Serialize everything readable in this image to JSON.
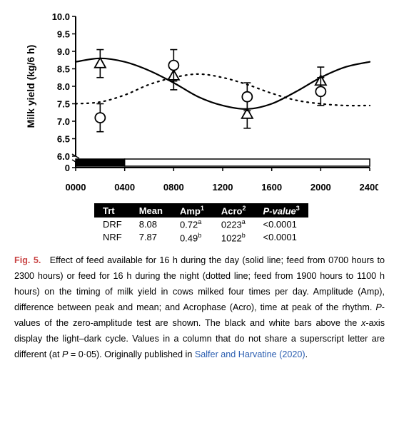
{
  "chart": {
    "type": "line+scatter",
    "ylabel": "Milk yield (kg/6 h)",
    "ylabel_fontsize": 14,
    "xlim": [
      0,
      2400
    ],
    "ylim_main": [
      6.0,
      10.0
    ],
    "ytick_step": 0.5,
    "xticks": [
      0,
      400,
      800,
      1200,
      1600,
      2000,
      2400
    ],
    "xtick_labels": [
      "0000",
      "0400",
      "0800",
      "1200",
      "1600",
      "2000",
      "2400"
    ],
    "ytick_labels": [
      "6.0",
      "6.5",
      "7.0",
      "7.5",
      "8.0",
      "8.5",
      "9.0",
      "9.5",
      "10.0"
    ],
    "tick_fontsize": 13,
    "tick_fontweight": "bold",
    "axis_color": "#000000",
    "background_color": "#ffffff",
    "axis_linewidth": 2,
    "break_y": 0.3,
    "light_dark_bar": {
      "dark_range": [
        0,
        400
      ],
      "light_range": [
        400,
        2400
      ],
      "dark_color": "#000000",
      "light_color": "#ffffff",
      "border_color": "#000000",
      "height": 10
    },
    "series": [
      {
        "name": "DRF",
        "line_style": "solid",
        "line_color": "#000000",
        "line_width": 2.2,
        "marker": "triangle",
        "marker_size": 8,
        "marker_stroke": "#000000",
        "marker_fill": "none",
        "points": [
          {
            "x": 200,
            "y": 8.65,
            "err": 0.4
          },
          {
            "x": 800,
            "y": 8.3,
            "err": 0.4
          },
          {
            "x": 1400,
            "y": 7.2,
            "err": 0.4
          },
          {
            "x": 2000,
            "y": 8.15,
            "err": 0.4
          }
        ],
        "curve": [
          {
            "x": 0,
            "y": 8.7
          },
          {
            "x": 200,
            "y": 8.8
          },
          {
            "x": 400,
            "y": 8.7
          },
          {
            "x": 600,
            "y": 8.45
          },
          {
            "x": 800,
            "y": 8.1
          },
          {
            "x": 1000,
            "y": 7.7
          },
          {
            "x": 1200,
            "y": 7.45
          },
          {
            "x": 1400,
            "y": 7.35
          },
          {
            "x": 1600,
            "y": 7.5
          },
          {
            "x": 1800,
            "y": 7.85
          },
          {
            "x": 2000,
            "y": 8.25
          },
          {
            "x": 2200,
            "y": 8.55
          },
          {
            "x": 2400,
            "y": 8.7
          }
        ]
      },
      {
        "name": "NRF",
        "line_style": "dotted",
        "line_color": "#000000",
        "line_width": 2.2,
        "marker": "circle",
        "marker_size": 7,
        "marker_stroke": "#000000",
        "marker_fill": "none",
        "points": [
          {
            "x": 200,
            "y": 7.1,
            "err": 0.4
          },
          {
            "x": 800,
            "y": 8.6,
            "err": 0.45
          },
          {
            "x": 1400,
            "y": 7.7,
            "err": 0.4
          },
          {
            "x": 2000,
            "y": 7.85,
            "err": 0.4
          }
        ],
        "curve": [
          {
            "x": 0,
            "y": 7.5
          },
          {
            "x": 200,
            "y": 7.55
          },
          {
            "x": 400,
            "y": 7.75
          },
          {
            "x": 600,
            "y": 8.05
          },
          {
            "x": 800,
            "y": 8.25
          },
          {
            "x": 1000,
            "y": 8.35
          },
          {
            "x": 1200,
            "y": 8.25
          },
          {
            "x": 1400,
            "y": 8.05
          },
          {
            "x": 1600,
            "y": 7.8
          },
          {
            "x": 1800,
            "y": 7.6
          },
          {
            "x": 2000,
            "y": 7.5
          },
          {
            "x": 2200,
            "y": 7.45
          },
          {
            "x": 2400,
            "y": 7.45
          }
        ]
      }
    ]
  },
  "table": {
    "columns": [
      "Trt",
      "Mean",
      "Amp",
      "Acro",
      "P-value"
    ],
    "col_sup": [
      "",
      "",
      "1",
      "2",
      "3"
    ],
    "col_italic": [
      false,
      false,
      false,
      false,
      true
    ],
    "col_sub_italic_P": true,
    "rows": [
      {
        "trt": "DRF",
        "mean": "8.08",
        "amp": "0.72",
        "amp_sup": "a",
        "acro": "0223",
        "acro_sup": "a",
        "pval": "<0.0001"
      },
      {
        "trt": "NRF",
        "mean": "7.87",
        "amp": "0.49",
        "amp_sup": "b",
        "acro": "1022",
        "acro_sup": "b",
        "pval": "<0.0001"
      }
    ],
    "header_bg": "#000000",
    "header_fg": "#ffffff"
  },
  "caption": {
    "label": "Fig. 5.",
    "text1": "Effect of feed available for 16 h during the day (solid line; feed from 0700 hours to 2300 hours) or feed for 16 h during the night (dotted line; feed from 1900 hours to 1100 h hours) on the timing of milk yield in cows milked four times per day. Amplitude (Amp), difference between peak and mean; and Acrophase (Acro), time at peak of the rhythm. ",
    "text_pvalue": "P",
    "text2": "-values of the zero-amplitude test are shown. The black and white bars above the ",
    "text_xaxis": "x",
    "text3": "-axis display the light–dark cycle. Values in a column that do not share a superscript letter are different (at ",
    "text_p2": "P",
    "text4": " = 0·05). Originally published in ",
    "citation": "Salfer and Harvatine (2020)",
    "text5": "."
  }
}
